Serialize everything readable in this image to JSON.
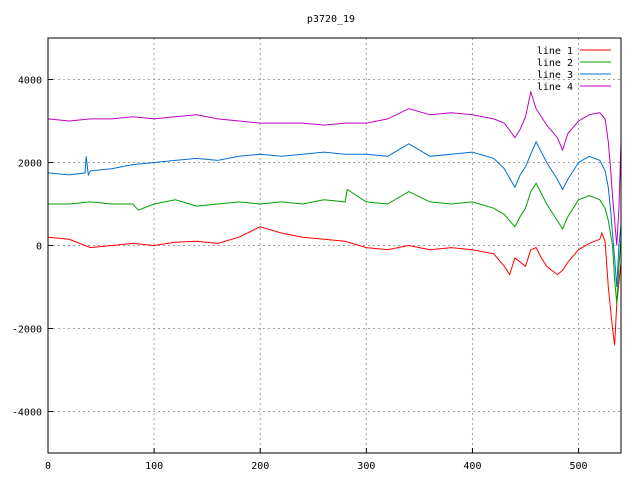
{
  "chart_data": {
    "type": "line",
    "title": "p3720_19",
    "xlabel": "",
    "ylabel": "",
    "xlim": [
      0,
      540
    ],
    "ylim": [
      -5000,
      5000
    ],
    "x_ticks": [
      0,
      100,
      200,
      300,
      400,
      500
    ],
    "y_ticks": [
      -4000,
      -2000,
      0,
      2000,
      4000
    ],
    "grid": true,
    "legend_position": "top-right",
    "series": [
      {
        "name": "line 1",
        "color": "#ff0000",
        "x": [
          0,
          20,
          40,
          60,
          80,
          100,
          120,
          140,
          160,
          180,
          200,
          220,
          240,
          260,
          280,
          300,
          320,
          340,
          360,
          380,
          400,
          410,
          420,
          430,
          435,
          440,
          450,
          455,
          460,
          465,
          470,
          480,
          485,
          490,
          500,
          510,
          520,
          522,
          525,
          528,
          530,
          532,
          534,
          536,
          538,
          540
        ],
        "y": [
          200,
          150,
          -50,
          0,
          50,
          0,
          80,
          100,
          50,
          200,
          450,
          300,
          200,
          150,
          100,
          -50,
          -100,
          0,
          -100,
          -50,
          -100,
          -150,
          -200,
          -500,
          -700,
          -300,
          -500,
          -100,
          -50,
          -300,
          -500,
          -700,
          -600,
          -400,
          -100,
          50,
          150,
          300,
          100,
          -1000,
          -1500,
          -2000,
          -2400,
          -1400,
          -900,
          -400
        ]
      },
      {
        "name": "line 2",
        "color": "#00a000",
        "x": [
          0,
          20,
          40,
          60,
          80,
          85,
          100,
          120,
          140,
          160,
          180,
          200,
          220,
          240,
          260,
          280,
          282,
          300,
          320,
          340,
          360,
          380,
          400,
          420,
          430,
          440,
          445,
          450,
          455,
          460,
          470,
          480,
          485,
          490,
          500,
          510,
          520,
          525,
          528,
          530,
          532,
          534,
          536,
          538,
          540
        ],
        "y": [
          1000,
          1000,
          1050,
          1000,
          1000,
          850,
          1000,
          1100,
          950,
          1000,
          1050,
          1000,
          1050,
          1000,
          1100,
          1050,
          1350,
          1050,
          1000,
          1300,
          1050,
          1000,
          1050,
          900,
          750,
          450,
          700,
          900,
          1300,
          1500,
          1000,
          600,
          400,
          700,
          1100,
          1200,
          1100,
          900,
          600,
          300,
          0,
          -800,
          -1400,
          -500,
          200
        ]
      },
      {
        "name": "line 3",
        "color": "#0070d0",
        "x": [
          0,
          20,
          35,
          36,
          38,
          40,
          60,
          80,
          100,
          120,
          140,
          160,
          180,
          200,
          220,
          240,
          260,
          280,
          300,
          320,
          340,
          360,
          380,
          400,
          420,
          430,
          440,
          445,
          450,
          455,
          460,
          470,
          480,
          485,
          490,
          500,
          510,
          520,
          525,
          528,
          530,
          532,
          534,
          536,
          538,
          540
        ],
        "y": [
          1750,
          1700,
          1750,
          2150,
          1700,
          1800,
          1850,
          1950,
          2000,
          2050,
          2100,
          2050,
          2150,
          2200,
          2150,
          2200,
          2250,
          2200,
          2200,
          2150,
          2450,
          2150,
          2200,
          2250,
          2100,
          1850,
          1400,
          1700,
          1900,
          2200,
          2500,
          2000,
          1600,
          1350,
          1600,
          2000,
          2150,
          2050,
          1800,
          1400,
          900,
          300,
          -300,
          -1000,
          0,
          500
        ]
      },
      {
        "name": "line 4",
        "color": "#c000c0",
        "x": [
          0,
          20,
          40,
          60,
          80,
          100,
          120,
          140,
          160,
          180,
          200,
          220,
          240,
          260,
          280,
          300,
          320,
          340,
          360,
          380,
          400,
          420,
          430,
          440,
          445,
          450,
          455,
          460,
          470,
          480,
          485,
          490,
          500,
          510,
          520,
          525,
          528,
          530,
          532,
          534,
          536,
          538,
          540
        ],
        "y": [
          3050,
          3000,
          3050,
          3050,
          3100,
          3050,
          3100,
          3150,
          3050,
          3000,
          2950,
          2950,
          2950,
          2900,
          2950,
          2950,
          3050,
          3300,
          3150,
          3200,
          3150,
          3050,
          2950,
          2600,
          2800,
          3100,
          3700,
          3300,
          2900,
          2600,
          2300,
          2700,
          3000,
          3150,
          3200,
          3050,
          2500,
          1900,
          1200,
          600,
          0,
          900,
          2500
        ]
      }
    ]
  }
}
